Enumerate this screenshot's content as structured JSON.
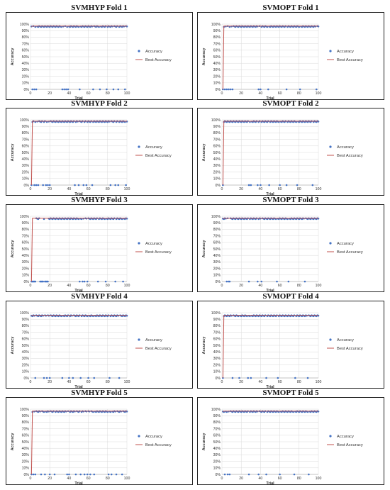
{
  "legend": {
    "accuracy": "Accuracy",
    "best": "Best Accuracy"
  },
  "colors": {
    "accuracy": "#4472c4",
    "best": "#c0504d",
    "grid": "#d9d9d9"
  },
  "chart_data": [
    {
      "type": "scatter",
      "title": "SVMHYP Fold 1",
      "xlabel": "Trial",
      "ylabel": "Accuracy",
      "xlim": [
        0,
        100
      ],
      "ylim": [
        0,
        100
      ],
      "x_ticks": [
        "0",
        "20",
        "40",
        "60",
        "80",
        "100"
      ],
      "y_ticks": [
        "0%",
        "10%",
        "20%",
        "30%",
        "40%",
        "50%",
        "60%",
        "70%",
        "80%",
        "90%",
        "100%"
      ],
      "best_start": 96,
      "best_start_trial": 1,
      "best_value": 97,
      "zero_trials": [
        2,
        4,
        6,
        33,
        35,
        37,
        39,
        51,
        65,
        72,
        79,
        86,
        91,
        98
      ],
      "series": [
        {
          "name": "Accuracy",
          "values": []
        },
        {
          "name": "Best Accuracy",
          "values": []
        }
      ]
    },
    {
      "type": "scatter",
      "title": "SVMOPT Fold 1",
      "xlabel": "Trial",
      "ylabel": "Accuracy",
      "xlim": [
        0,
        100
      ],
      "ylim": [
        0,
        100
      ],
      "x_ticks": [
        "0",
        "20",
        "40",
        "60",
        "80",
        "100"
      ],
      "y_ticks": [
        "0%",
        "10%",
        "20%",
        "30%",
        "40%",
        "50%",
        "60%",
        "70%",
        "80%",
        "90%",
        "100%"
      ],
      "best_start": 0,
      "best_start_trial": 1,
      "best_value": 97,
      "zero_trials": [
        1,
        3,
        5,
        7,
        9,
        11,
        38,
        40,
        48,
        67,
        81,
        98
      ],
      "series": [
        {
          "name": "Accuracy",
          "values": []
        },
        {
          "name": "Best Accuracy",
          "values": []
        }
      ]
    },
    {
      "type": "scatter",
      "title": "SVMHYP Fold 2",
      "xlabel": "Trial",
      "ylabel": "Accuracy",
      "xlim": [
        0,
        100
      ],
      "ylim": [
        0,
        100
      ],
      "x_ticks": [
        "0",
        "20",
        "40",
        "60",
        "80",
        "100"
      ],
      "y_ticks": [
        "0%",
        "10%",
        "20%",
        "30%",
        "40%",
        "50%",
        "60%",
        "70%",
        "80%",
        "90%",
        "100%"
      ],
      "best_start": 0,
      "best_start_trial": 1,
      "best_value": 98,
      "zero_trials": [
        1,
        4,
        6,
        8,
        13,
        16,
        18,
        20,
        46,
        50,
        55,
        58,
        64,
        83,
        88,
        91,
        99
      ],
      "series": [
        {
          "name": "Accuracy",
          "values": []
        },
        {
          "name": "Best Accuracy",
          "values": []
        }
      ]
    },
    {
      "type": "scatter",
      "title": "SVMOPT Fold 2",
      "xlabel": "Trial",
      "ylabel": "Accuracy",
      "xlim": [
        0,
        100
      ],
      "ylim": [
        0,
        100
      ],
      "x_ticks": [
        "0",
        "20",
        "40",
        "60",
        "80",
        "100"
      ],
      "y_ticks": [
        "0%",
        "10%",
        "20%",
        "30%",
        "40%",
        "50%",
        "60%",
        "70%",
        "80%",
        "90%",
        "100%"
      ],
      "best_start": 0,
      "best_start_trial": 1,
      "best_value": 98,
      "zero_trials": [
        1,
        28,
        30,
        37,
        40,
        49,
        60,
        67,
        78,
        94
      ],
      "series": [
        {
          "name": "Accuracy",
          "values": []
        },
        {
          "name": "Best Accuracy",
          "values": []
        }
      ]
    },
    {
      "type": "scatter",
      "title": "SVMHYP Fold 3",
      "xlabel": "Trial",
      "ylabel": "Accuracy",
      "xlim": [
        0,
        100
      ],
      "ylim": [
        0,
        100
      ],
      "x_ticks": [
        "0",
        "20",
        "40",
        "60",
        "80",
        "100"
      ],
      "y_ticks": [
        "0%",
        "10%",
        "20%",
        "30%",
        "40%",
        "50%",
        "60%",
        "70%",
        "80%",
        "90%",
        "100%"
      ],
      "best_start": 0,
      "best_start_trial": 1,
      "best_value": 97,
      "zero_trials": [
        1,
        2,
        3,
        4,
        5,
        10,
        11,
        12,
        13,
        15,
        16,
        17,
        18,
        51,
        54,
        56,
        59,
        70,
        78,
        88,
        96
      ],
      "series": [
        {
          "name": "Accuracy",
          "values": []
        },
        {
          "name": "Best Accuracy",
          "values": []
        }
      ]
    },
    {
      "type": "scatter",
      "title": "SVMOPT Fold 3",
      "xlabel": "Trial",
      "ylabel": "Accuracy",
      "xlim": [
        0,
        100
      ],
      "ylim": [
        0,
        100
      ],
      "x_ticks": [
        "0",
        "20",
        "40",
        "60",
        "80",
        "100"
      ],
      "y_ticks": [
        "0%",
        "10%",
        "20%",
        "30%",
        "40%",
        "50%",
        "60%",
        "70%",
        "80%",
        "90%",
        "100%"
      ],
      "best_start": 96,
      "best_start_trial": 1,
      "best_value": 97,
      "zero_trials": [
        5,
        7,
        8,
        28,
        37,
        41,
        57,
        69,
        86
      ],
      "series": [
        {
          "name": "Accuracy",
          "values": []
        },
        {
          "name": "Best Accuracy",
          "values": []
        }
      ]
    },
    {
      "type": "scatter",
      "title": "SVMHYP Fold 4",
      "xlabel": "Trial",
      "ylabel": "Accuracy",
      "xlim": [
        0,
        100
      ],
      "ylim": [
        0,
        100
      ],
      "x_ticks": [
        "0",
        "20",
        "40",
        "60",
        "80",
        "100"
      ],
      "y_ticks": [
        "0%",
        "10%",
        "20%",
        "30%",
        "40%",
        "50%",
        "60%",
        "70%",
        "80%",
        "90%",
        "100%"
      ],
      "best_start": 95,
      "best_start_trial": 1,
      "best_value": 96,
      "zero_trials": [
        5,
        14,
        17,
        20,
        33,
        40,
        44,
        52,
        60,
        66,
        82,
        92
      ],
      "series": [
        {
          "name": "Accuracy",
          "values": []
        },
        {
          "name": "Best Accuracy",
          "values": []
        }
      ]
    },
    {
      "type": "scatter",
      "title": "SVMOPT Fold 4",
      "xlabel": "Trial",
      "ylabel": "Accuracy",
      "xlim": [
        0,
        100
      ],
      "ylim": [
        0,
        100
      ],
      "x_ticks": [
        "0",
        "20",
        "40",
        "60",
        "80",
        "100"
      ],
      "y_ticks": [
        "0%",
        "10%",
        "20%",
        "30%",
        "40%",
        "50%",
        "60%",
        "70%",
        "80%",
        "90%",
        "100%"
      ],
      "best_start": 0,
      "best_start_trial": 1,
      "best_value": 96,
      "zero_trials": [
        1,
        11,
        18,
        27,
        30,
        46,
        58,
        76,
        89
      ],
      "series": [
        {
          "name": "Accuracy",
          "values": []
        },
        {
          "name": "Best Accuracy",
          "values": []
        }
      ]
    },
    {
      "type": "scatter",
      "title": "SVMHYP Fold 5",
      "xlabel": "Trial",
      "ylabel": "Accuracy",
      "xlim": [
        0,
        100
      ],
      "ylim": [
        0,
        100
      ],
      "x_ticks": [
        "0",
        "20",
        "40",
        "60",
        "80",
        "100"
      ],
      "y_ticks": [
        "0%",
        "10%",
        "20%",
        "30%",
        "40%",
        "50%",
        "60%",
        "70%",
        "80%",
        "90%",
        "100%"
      ],
      "best_start": 0,
      "best_start_trial": 1,
      "best_value": 97,
      "zero_trials": [
        1,
        3,
        5,
        11,
        15,
        20,
        25,
        38,
        40,
        47,
        52,
        56,
        59,
        62,
        66,
        81,
        84,
        89,
        95
      ],
      "series": [
        {
          "name": "Accuracy",
          "values": []
        },
        {
          "name": "Best Accuracy",
          "values": []
        }
      ]
    },
    {
      "type": "scatter",
      "title": "SVMOPT Fold 5",
      "xlabel": "Trial",
      "ylabel": "Accuracy",
      "xlim": [
        0,
        100
      ],
      "ylim": [
        0,
        100
      ],
      "x_ticks": [
        "0",
        "20",
        "40",
        "60",
        "80",
        "100"
      ],
      "y_ticks": [
        "0%",
        "10%",
        "20%",
        "30%",
        "40%",
        "50%",
        "60%",
        "70%",
        "80%",
        "90%",
        "100%"
      ],
      "best_start": 96,
      "best_start_trial": 1,
      "best_value": 97,
      "zero_trials": [
        3,
        6,
        8,
        28,
        38,
        46,
        60,
        75,
        90
      ],
      "series": [
        {
          "name": "Accuracy",
          "values": []
        },
        {
          "name": "Best Accuracy",
          "values": []
        }
      ]
    }
  ]
}
